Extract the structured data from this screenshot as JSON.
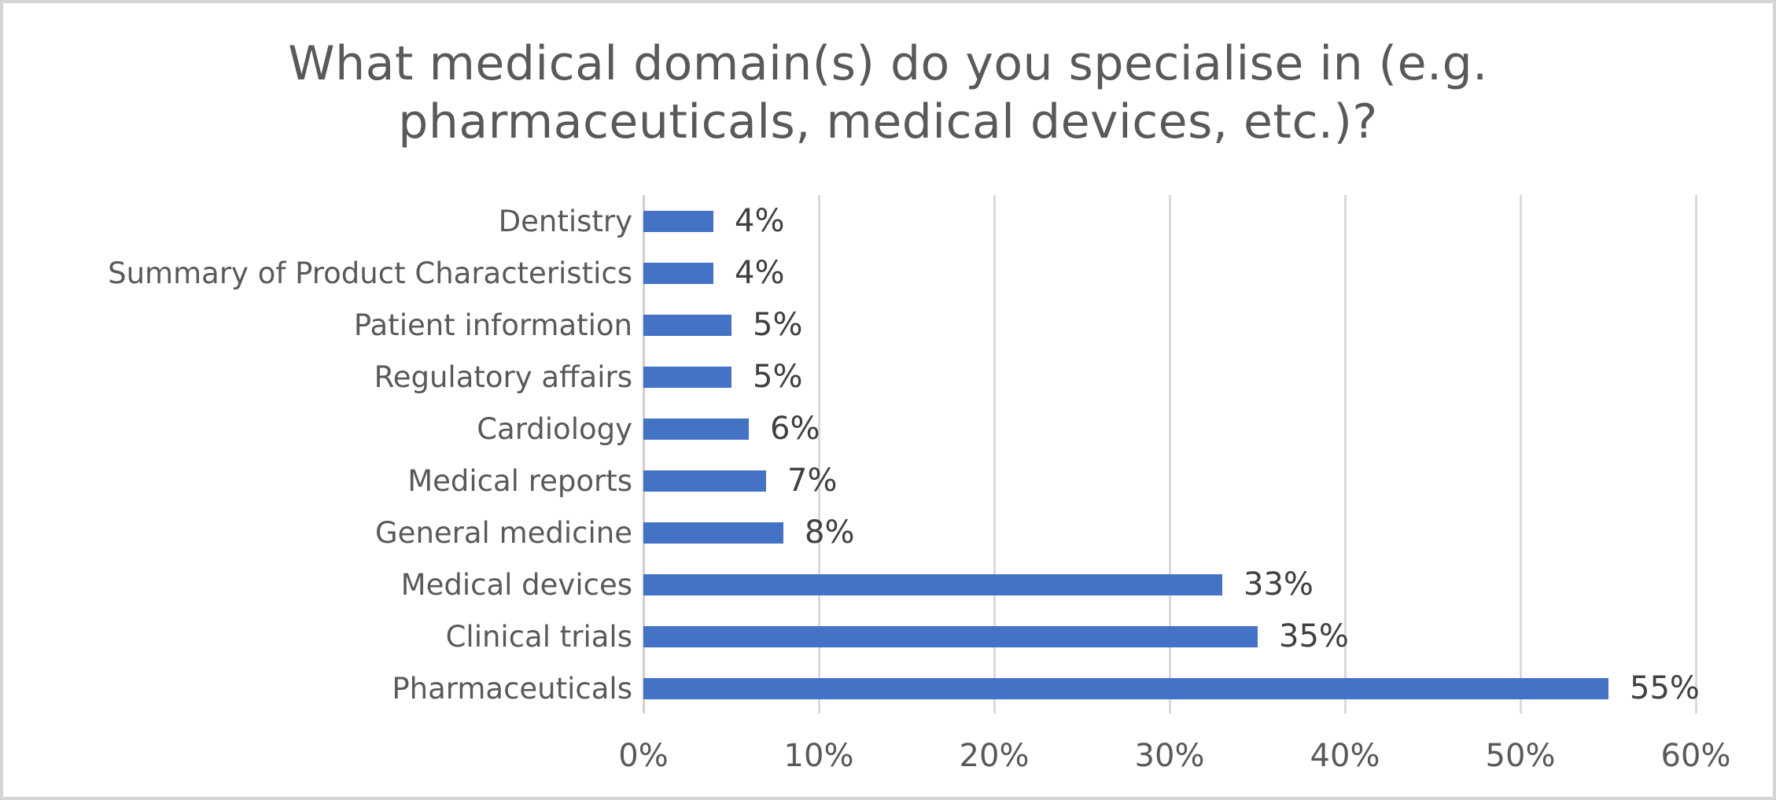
{
  "frame": {
    "background": "#ffffff",
    "border_color": "#d5d5d5"
  },
  "chart_data": {
    "type": "bar",
    "orientation": "horizontal",
    "title": "What medical domain(s) do you specialise in (e.g. pharmaceuticals, medical devices, etc.)?",
    "title_lines": [
      "What medical domain(s) do you specialise in (e.g.",
      "pharmaceuticals, medical devices, etc.)?"
    ],
    "categories": [
      "Dentistry",
      "Summary of Product Characteristics",
      "Patient information",
      "Regulatory affairs",
      "Cardiology",
      "Medical reports",
      "General medicine",
      "Medical devices",
      "Clinical trials",
      "Pharmaceuticals"
    ],
    "values": [
      4,
      4,
      5,
      5,
      6,
      7,
      8,
      33,
      35,
      55
    ],
    "data_labels": [
      "4%",
      "4%",
      "5%",
      "5%",
      "6%",
      "7%",
      "8%",
      "33%",
      "35%",
      "55%"
    ],
    "xlabel": "",
    "ylabel": "",
    "xlim": [
      0,
      60
    ],
    "x_ticks": [
      0,
      10,
      20,
      30,
      40,
      50,
      60
    ],
    "x_tick_labels": [
      "0%",
      "10%",
      "20%",
      "30%",
      "40%",
      "50%",
      "60%"
    ],
    "grid": "vertical-gridlines-on",
    "legend": "none",
    "colors": {
      "bar": "#4472c4",
      "title_text": "#595959",
      "category_text": "#595959",
      "tick_text": "#595959",
      "data_label_text": "#404040",
      "gridline": "#d9d9d9"
    }
  }
}
